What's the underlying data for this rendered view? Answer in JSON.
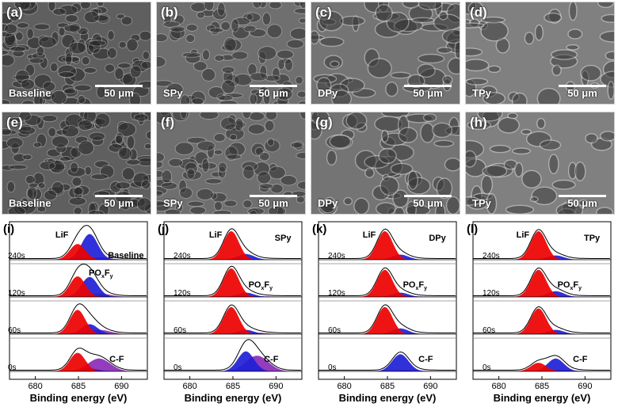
{
  "sem_row1": [
    {
      "panel": "(a)",
      "sample": "Baseline",
      "scale": "50 μm"
    },
    {
      "panel": "(b)",
      "sample": "SPy",
      "scale": "50 μm"
    },
    {
      "panel": "(c)",
      "sample": "DPy",
      "scale": "50 μm"
    },
    {
      "panel": "(d)",
      "sample": "TPy",
      "scale": "50 μm"
    }
  ],
  "sem_row2": [
    {
      "panel": "(e)",
      "sample": "Baseline",
      "scale": "50 μm"
    },
    {
      "panel": "(f)",
      "sample": "SPy",
      "scale": "50 μm"
    },
    {
      "panel": "(g)",
      "sample": "DPy",
      "scale": "50 μm"
    },
    {
      "panel": "(h)",
      "sample": "TPy",
      "scale": "50 μm"
    }
  ],
  "chart_data": [
    {
      "type": "area",
      "panel": "(i)",
      "sample": "Baseline",
      "xlabel": "Binding energy (eV)",
      "x_ticks": [
        680,
        685,
        690
      ],
      "xlim": [
        677,
        693
      ],
      "time_labels": [
        "240s",
        "120s",
        "60s",
        "0s"
      ],
      "annotations": [
        "LiF",
        "PO",
        "x",
        "F",
        "y",
        "C-F"
      ],
      "peaks": {
        "LiF_center_eV": 684.9,
        "POxFy_center_eV": 686.3,
        "CF_center_eV": 687.4
      },
      "intensity": {
        "240s": {
          "LiF": 0.55,
          "POxFy": 0.9,
          "CF": 0.08
        },
        "120s": {
          "LiF": 0.72,
          "POxFy": 0.7,
          "CF": 0.12
        },
        "60s": {
          "LiF": 0.85,
          "POxFy": 0.35,
          "CF": 0.15
        },
        "0s": {
          "LiF": 0.65,
          "POxFy": 0.1,
          "CF": 0.45
        }
      }
    },
    {
      "type": "area",
      "panel": "(j)",
      "sample": "SPy",
      "xlabel": "Binding energy (eV)",
      "x_ticks": [
        680,
        685,
        690
      ],
      "xlim": [
        677,
        693
      ],
      "time_labels": [
        "240s",
        "120s",
        "60s",
        "0s"
      ],
      "annotations": [
        "LiF",
        "PO",
        "x",
        "F",
        "y",
        "C-F"
      ],
      "peaks": {
        "LiF_center_eV": 684.8,
        "POxFy_center_eV": 686.5,
        "CF_center_eV": 687.8
      },
      "intensity": {
        "240s": {
          "LiF": 1.0,
          "POxFy": 0.2,
          "CF": 0.02
        },
        "120s": {
          "LiF": 1.0,
          "POxFy": 0.15,
          "CF": 0.03
        },
        "60s": {
          "LiF": 0.95,
          "POxFy": 0.15,
          "CF": 0.05
        },
        "0s": {
          "LiF": 0.0,
          "POxFy": 0.7,
          "CF": 0.55
        }
      }
    },
    {
      "type": "area",
      "panel": "(k)",
      "sample": "DPy",
      "xlabel": "Binding energy (eV)",
      "x_ticks": [
        680,
        685,
        690
      ],
      "xlim": [
        677,
        693
      ],
      "time_labels": [
        "240s",
        "120s",
        "60s",
        "0s"
      ],
      "annotations": [
        "LiF",
        "DPy",
        "PO",
        "x",
        "F",
        "y",
        "C-F"
      ],
      "peaks": {
        "LiF_center_eV": 684.7,
        "POxFy_center_eV": 686.5,
        "CF_center_eV": 687.5
      },
      "intensity": {
        "240s": {
          "LiF": 1.0,
          "POxFy": 0.18,
          "CF": 0.02
        },
        "120s": {
          "LiF": 0.95,
          "POxFy": 0.15,
          "CF": 0.03
        },
        "60s": {
          "LiF": 0.95,
          "POxFy": 0.2,
          "CF": 0.03
        },
        "0s": {
          "LiF": 0.0,
          "POxFy": 0.6,
          "CF": 0.05
        }
      }
    },
    {
      "type": "area",
      "panel": "(l)",
      "sample": "TPy",
      "xlabel": "Binding energy (eV)",
      "x_ticks": [
        680,
        685,
        690
      ],
      "xlim": [
        677,
        693
      ],
      "time_labels": [
        "240s",
        "120s",
        "60s",
        "0s"
      ],
      "annotations": [
        "LiF",
        "TPy",
        "PO",
        "x",
        "F",
        "y",
        "C-F"
      ],
      "peaks": {
        "LiF_center_eV": 684.6,
        "POxFy_center_eV": 686.6,
        "CF_center_eV": 687.5
      },
      "intensity": {
        "240s": {
          "LiF": 1.0,
          "POxFy": 0.15,
          "CF": 0.02
        },
        "120s": {
          "LiF": 0.95,
          "POxFy": 0.2,
          "CF": 0.03
        },
        "60s": {
          "LiF": 0.9,
          "POxFy": 0.15,
          "CF": 0.03
        },
        "0s": {
          "LiF": 0.3,
          "POxFy": 0.45,
          "CF": 0.05
        }
      }
    }
  ],
  "colors": {
    "LiF": "#ee0000",
    "POxFy": "#1f1fd6",
    "CF": "#8a2bb8",
    "envelope": "#000000",
    "raw": "#555555"
  }
}
